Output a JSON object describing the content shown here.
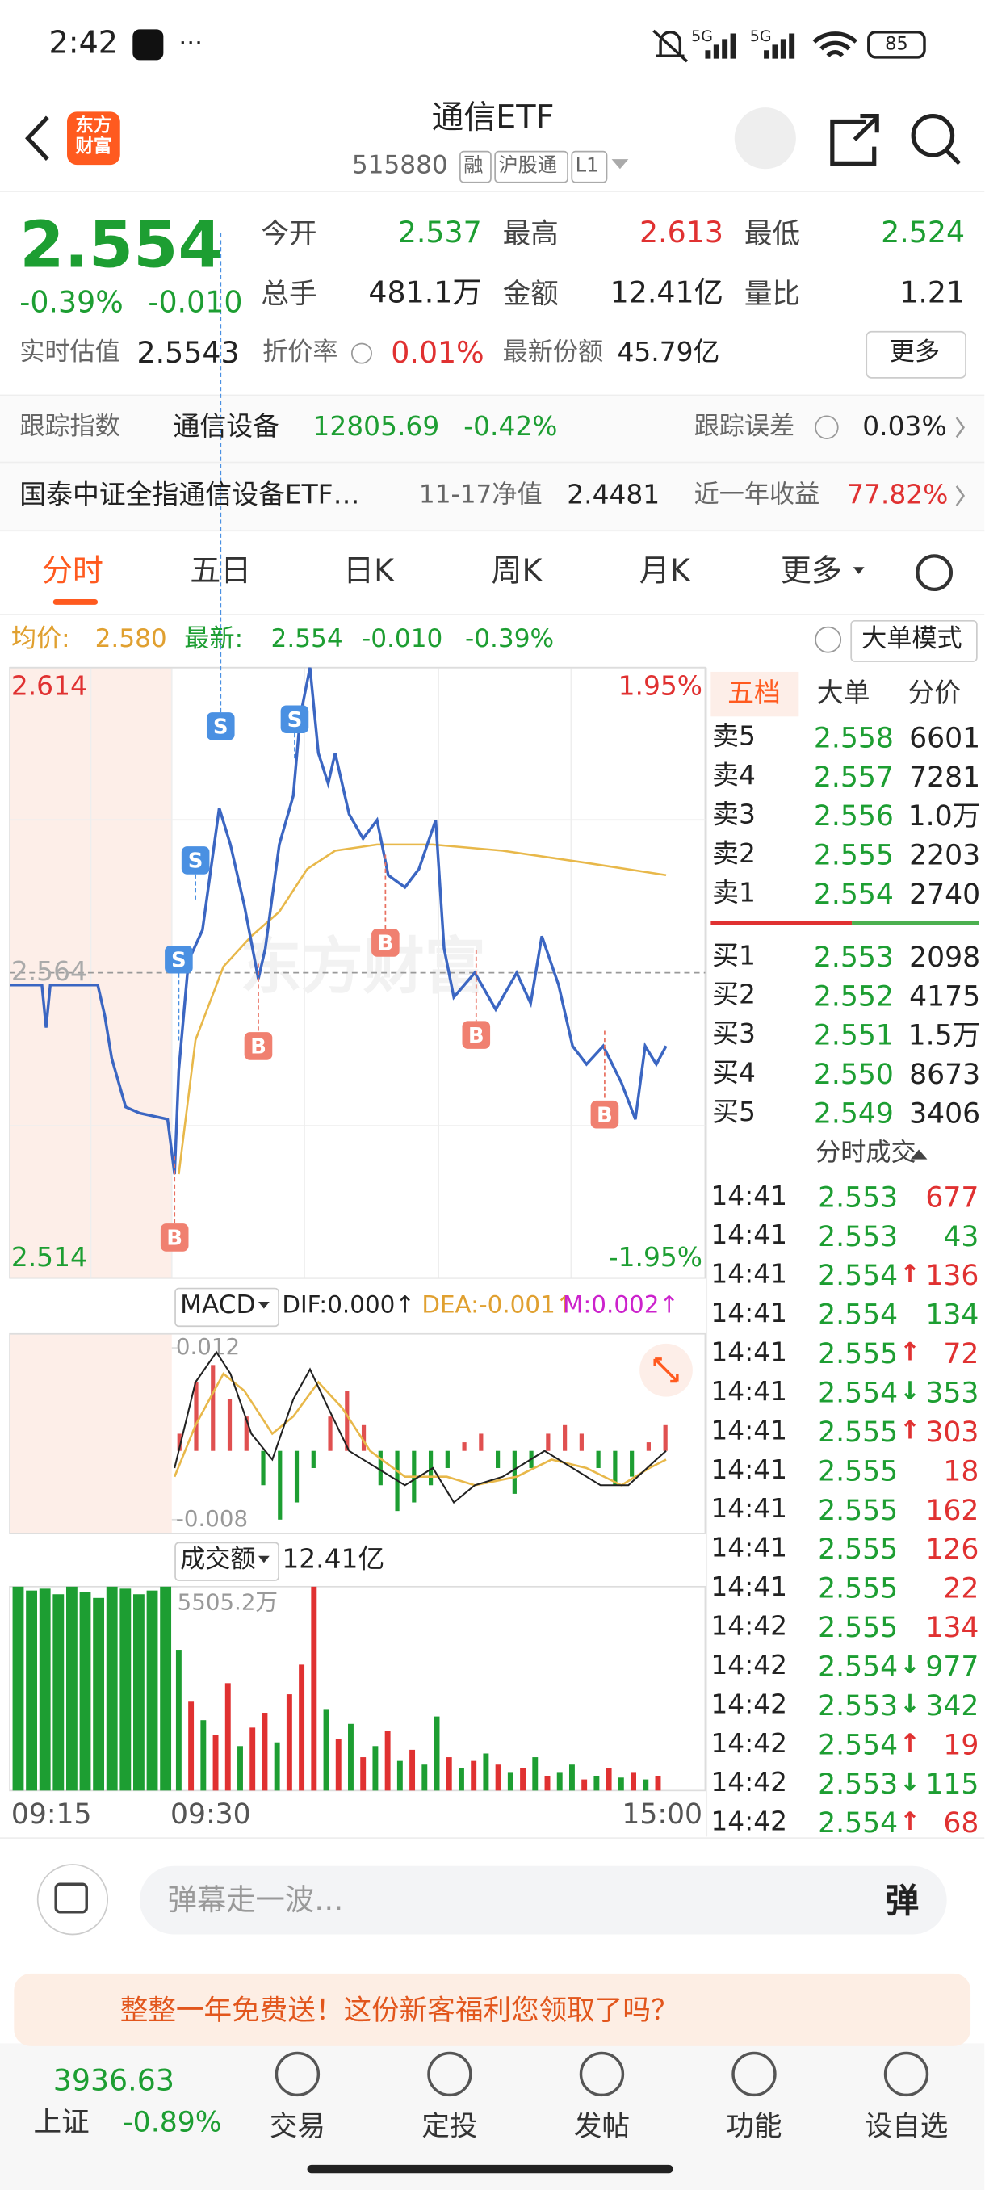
{
  "status": {
    "time": "2:42",
    "dots": "···",
    "net1": "5G",
    "net2": "5G",
    "battery": "85"
  },
  "header": {
    "logo": "东方财富",
    "title": "通信ETF",
    "code": "515880",
    "tags": [
      "融",
      "沪股通",
      "L1"
    ]
  },
  "quote": {
    "price": "2.554",
    "change_pct": "-0.39%",
    "change": "-0.010",
    "fields": [
      {
        "label": "今开",
        "value": "2.537"
      },
      {
        "label": "最高",
        "value": "2.613"
      },
      {
        "label": "最低",
        "value": "2.524"
      },
      {
        "label": "总手",
        "value": "481.1万"
      },
      {
        "label": "金额",
        "value": "12.41亿"
      },
      {
        "label": "量比",
        "value": "1.21"
      }
    ],
    "estimate_label": "实时估值",
    "estimate": "2.5543",
    "premium_label": "折价率",
    "premium": "0.01%",
    "shares_label": "最新份额",
    "shares": "45.79亿",
    "more": "更多"
  },
  "tracking": {
    "label": "跟踪指数",
    "index": "通信设备",
    "value": "12805.69",
    "pct": "-0.42%",
    "error_label": "跟踪误差",
    "error": "0.03%"
  },
  "fund": {
    "name": "国泰中证全指通信设备ETF…",
    "nav_label": "11-17净值",
    "nav": "2.4481",
    "return_label": "近一年收益",
    "return": "77.82%"
  },
  "tabs": [
    "分时",
    "五日",
    "日K",
    "周K",
    "月K",
    "更多"
  ],
  "info": {
    "avg_label": "均价:",
    "avg": "2.580",
    "latest_label": "最新:",
    "latest": "2.554",
    "change": "-0.010",
    "pct": "-0.39%",
    "mode": "大单模式"
  },
  "intraday": {
    "type": "line",
    "watermark": "东方财富",
    "ylim": [
      2.514,
      2.614
    ],
    "yticks": [
      2.514,
      2.564,
      2.614
    ],
    "y2lim": [
      -1.95,
      1.95
    ],
    "y2ticks": [
      {
        "value": -1.95,
        "label": "-1.95%"
      },
      {
        "value": 1.95,
        "label": "1.95%"
      }
    ],
    "xticks": [
      "09:15",
      "09:30",
      "15:00"
    ],
    "price": {
      "color": "#3b66c2",
      "values": [
        2.562,
        2.562,
        2.555,
        2.562,
        2.562,
        2.557,
        2.55,
        2.546,
        2.542,
        2.541,
        2.54,
        2.531,
        2.548,
        2.566,
        2.571,
        2.591,
        2.585,
        2.575,
        2.563,
        2.568,
        2.585,
        2.593,
        2.606,
        2.614,
        2.6,
        2.595,
        2.6,
        2.59,
        2.586,
        2.589,
        2.58,
        2.578,
        2.581,
        2.589,
        2.568,
        2.56,
        2.564,
        2.558,
        2.564,
        2.559,
        2.57,
        2.562,
        2.552,
        2.549,
        2.552,
        2.546,
        2.54,
        2.552,
        2.549,
        2.552
      ]
    },
    "average": {
      "color": "#e8b84a",
      "values": [
        2.531,
        2.553,
        2.565,
        2.57,
        2.574,
        2.581,
        2.584,
        2.585,
        2.585,
        2.584,
        2.582,
        2.58
      ]
    },
    "marks": [
      "S",
      "S",
      "S",
      "S",
      "B",
      "B",
      "B",
      "B",
      "B"
    ]
  },
  "macd": {
    "type": "line",
    "title": "MACD",
    "dif": "DIF:0.000↑",
    "dea": "DEA:-0.001↑",
    "m": "M:0.002↑",
    "ylim": [
      -0.008,
      0.012
    ],
    "yticks": [
      -0.008,
      0.012
    ],
    "dif_values": [
      -0.002,
      0.008,
      0.0115,
      0.009,
      0.002,
      -0.001,
      0.006,
      0.0095,
      0.005,
      0,
      -0.002,
      -0.004,
      -0.002,
      -0.006,
      -0.004,
      -0.003,
      0,
      -0.002,
      -0.004,
      -0.004,
      -0.001,
      0
    ],
    "dea_values": [
      -0.003,
      0.003,
      0.009,
      0.007,
      0.002,
      0.004,
      0.008,
      0.005,
      0,
      -0.003,
      -0.003,
      -0.004,
      -0.003,
      -0.001,
      -0.002,
      -0.004,
      -0.002,
      -0.001
    ],
    "histogram": [
      0.002,
      0.008,
      0.01,
      0.006,
      0.004,
      -0.004,
      -0.008,
      -0.006,
      -0.002,
      0.004,
      0.007,
      0.003,
      -0.004,
      -0.007,
      -0.006,
      -0.004,
      -0.002,
      0.001,
      0.002,
      -0.002,
      -0.005,
      -0.002,
      0.002,
      0.003,
      0.002,
      -0.002,
      -0.004,
      -0.003,
      0.001,
      0.003
    ],
    "up_color": "#e05050",
    "down_color": "#1d9e32",
    "dif_color": "#222222",
    "dea_color": "#e8b84a"
  },
  "volume": {
    "type": "bar",
    "title": "成交额",
    "total": "12.41亿",
    "ylim": [
      0,
      5505.2
    ],
    "yticks": [
      {
        "value": 5505.2,
        "label": "5505.2万"
      }
    ],
    "values": [
      5505.2,
      5400,
      5450,
      5300,
      5505.2,
      5350,
      5200,
      5505.2,
      5450,
      5300,
      5400,
      5505.2,
      3800,
      2400,
      1900,
      1500,
      2900,
      1200,
      1700,
      2100,
      1300,
      2600,
      3400,
      5505.2,
      2200,
      1400,
      1800,
      900,
      1200,
      1600,
      800,
      1100,
      700,
      2000,
      900,
      600,
      800,
      1000,
      700,
      500,
      600,
      900,
      400,
      500,
      700,
      300,
      400,
      600,
      350,
      500,
      300,
      400
    ],
    "colors": [
      "#1d9e32",
      "#1d9e32",
      "#1d9e32",
      "#1d9e32",
      "#1d9e32",
      "#1d9e32",
      "#1d9e32",
      "#1d9e32",
      "#1d9e32",
      "#1d9e32",
      "#1d9e32",
      "#1d9e32",
      "#1d9e32",
      "#e03131",
      "#1d9e32",
      "#e03131",
      "#e03131",
      "#1d9e32",
      "#e03131",
      "#e03131",
      "#1d9e32",
      "#e03131",
      "#e03131",
      "#e03131",
      "#1d9e32",
      "#e03131",
      "#1d9e32",
      "#e03131",
      "#1d9e32",
      "#e03131",
      "#1d9e32",
      "#e03131",
      "#1d9e32",
      "#1d9e32",
      "#e03131",
      "#1d9e32",
      "#e03131",
      "#1d9e32",
      "#e03131",
      "#1d9e32",
      "#e03131",
      "#1d9e32",
      "#e03131",
      "#1d9e32",
      "#1d9e32",
      "#e03131",
      "#1d9e32",
      "#e03131",
      "#1d9e32",
      "#e03131",
      "#1d9e32",
      "#e03131"
    ]
  },
  "order_book": {
    "tabs": [
      "五档",
      "大单",
      "分价"
    ],
    "sell": [
      {
        "label": "卖5",
        "price": "2.558",
        "volume": "6601"
      },
      {
        "label": "卖4",
        "price": "2.557",
        "volume": "7281"
      },
      {
        "label": "卖3",
        "price": "2.556",
        "volume": "1.0万"
      },
      {
        "label": "卖2",
        "price": "2.555",
        "volume": "2203"
      },
      {
        "label": "卖1",
        "price": "2.554",
        "volume": "2740"
      }
    ],
    "buy": [
      {
        "label": "买1",
        "price": "2.553",
        "volume": "2098"
      },
      {
        "label": "买2",
        "price": "2.552",
        "volume": "4175"
      },
      {
        "label": "买3",
        "price": "2.551",
        "volume": "1.5万"
      },
      {
        "label": "买4",
        "price": "2.550",
        "volume": "8673"
      },
      {
        "label": "买5",
        "price": "2.549",
        "volume": "3406"
      }
    ]
  },
  "trades": {
    "title": "分时成交",
    "rows": [
      {
        "time": "14:41",
        "price": "2.553",
        "volume": "677",
        "color": "#e03131"
      },
      {
        "time": "14:41",
        "price": "2.553",
        "volume": "43",
        "color": "#1d9e32"
      },
      {
        "time": "14:41",
        "price": "2.554",
        "arrow": "↑",
        "volume": "136",
        "color": "#e03131"
      },
      {
        "time": "14:41",
        "price": "2.554",
        "volume": "134",
        "color": "#1d9e32"
      },
      {
        "time": "14:41",
        "price": "2.555",
        "arrow": "↑",
        "volume": "72",
        "color": "#e03131"
      },
      {
        "time": "14:41",
        "price": "2.554",
        "arrow": "↓",
        "volume": "353",
        "color": "#1d9e32"
      },
      {
        "time": "14:41",
        "price": "2.555",
        "arrow": "↑",
        "volume": "303",
        "color": "#e03131"
      },
      {
        "time": "14:41",
        "price": "2.555",
        "volume": "18",
        "color": "#e03131"
      },
      {
        "time": "14:41",
        "price": "2.555",
        "volume": "162",
        "color": "#e03131"
      },
      {
        "time": "14:41",
        "price": "2.555",
        "volume": "126",
        "color": "#e03131"
      },
      {
        "time": "14:41",
        "price": "2.555",
        "volume": "22",
        "color": "#e03131"
      },
      {
        "time": "14:42",
        "price": "2.555",
        "volume": "134",
        "color": "#e03131"
      },
      {
        "time": "14:42",
        "price": "2.554",
        "arrow": "↓",
        "volume": "977",
        "color": "#1d9e32"
      },
      {
        "time": "14:42",
        "price": "2.553",
        "arrow": "↓",
        "volume": "342",
        "color": "#1d9e32"
      },
      {
        "time": "14:42",
        "price": "2.554",
        "arrow": "↑",
        "volume": "19",
        "color": "#e03131"
      },
      {
        "time": "14:42",
        "price": "2.553",
        "arrow": "↓",
        "volume": "115",
        "color": "#1d9e32"
      },
      {
        "time": "14:42",
        "price": "2.554",
        "arrow": "↑",
        "volume": "68",
        "color": "#e03131"
      }
    ]
  },
  "input": {
    "placeholder": "弹幕走一波…",
    "button": "弹"
  },
  "banner": {
    "text": "整整一年免费送！这份新客福利您领取了吗？"
  },
  "nav": {
    "index_value": "3936.63",
    "index_name": "上证",
    "index_pct": "-0.89%",
    "items": [
      "交易",
      "定投",
      "发帖",
      "功能",
      "设自选"
    ]
  }
}
